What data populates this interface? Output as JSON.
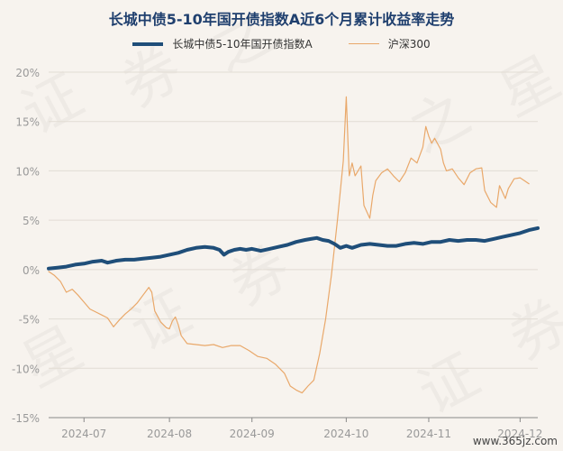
{
  "chart_data": {
    "type": "line",
    "title": "长城中债5-10年国开债指数A近6个月累计收益率走势",
    "xlabel": "",
    "ylabel": "",
    "ylim": [
      -15,
      20
    ],
    "yticks": [
      20,
      15,
      10,
      5,
      0,
      -5,
      -10,
      -15
    ],
    "ytick_labels": [
      "20%",
      "15%",
      "10%",
      "5%",
      "0%",
      "-5%",
      "-10%",
      "-15%"
    ],
    "xtick_labels": [
      "2024-07",
      "2024-08",
      "2024-09",
      "2024-10",
      "2024-11",
      "2024-12"
    ],
    "xtick_positions": [
      12,
      41,
      69,
      101,
      129,
      160
    ],
    "x_range": [
      0,
      166
    ],
    "grid": "horizontal",
    "legend_position": "top-center",
    "series": [
      {
        "name": "长城中债5-10年国开债指数A",
        "color": "#1f4e79",
        "points": [
          [
            0,
            0.1
          ],
          [
            3,
            0.2
          ],
          [
            6,
            0.3
          ],
          [
            9,
            0.5
          ],
          [
            12,
            0.6
          ],
          [
            15,
            0.8
          ],
          [
            18,
            0.9
          ],
          [
            20,
            0.7
          ],
          [
            23,
            0.9
          ],
          [
            26,
            1.0
          ],
          [
            29,
            1.0
          ],
          [
            32,
            1.1
          ],
          [
            35,
            1.2
          ],
          [
            38,
            1.3
          ],
          [
            41,
            1.5
          ],
          [
            44,
            1.7
          ],
          [
            47,
            2.0
          ],
          [
            50,
            2.2
          ],
          [
            53,
            2.3
          ],
          [
            56,
            2.2
          ],
          [
            58,
            2.0
          ],
          [
            59.5,
            1.5
          ],
          [
            61,
            1.8
          ],
          [
            63,
            2.0
          ],
          [
            65,
            2.1
          ],
          [
            67,
            2.0
          ],
          [
            69,
            2.1
          ],
          [
            72,
            1.9
          ],
          [
            75,
            2.1
          ],
          [
            78,
            2.3
          ],
          [
            81,
            2.5
          ],
          [
            84,
            2.8
          ],
          [
            87,
            3.0
          ],
          [
            89,
            3.1
          ],
          [
            91,
            3.2
          ],
          [
            93,
            3.0
          ],
          [
            95,
            2.9
          ],
          [
            97,
            2.6
          ],
          [
            99,
            2.2
          ],
          [
            101,
            2.4
          ],
          [
            103,
            2.2
          ],
          [
            106,
            2.5
          ],
          [
            109,
            2.6
          ],
          [
            112,
            2.5
          ],
          [
            115,
            2.4
          ],
          [
            118,
            2.4
          ],
          [
            121,
            2.6
          ],
          [
            124,
            2.7
          ],
          [
            127,
            2.6
          ],
          [
            130,
            2.8
          ],
          [
            133,
            2.8
          ],
          [
            136,
            3.0
          ],
          [
            139,
            2.9
          ],
          [
            142,
            3.0
          ],
          [
            145,
            3.0
          ],
          [
            148,
            2.9
          ],
          [
            151,
            3.1
          ],
          [
            154,
            3.3
          ],
          [
            157,
            3.5
          ],
          [
            160,
            3.7
          ],
          [
            163,
            4.0
          ],
          [
            166,
            4.2
          ]
        ]
      },
      {
        "name": "沪深300",
        "color": "#e9a86a",
        "points": [
          [
            0,
            -0.2
          ],
          [
            2,
            -0.6
          ],
          [
            4,
            -1.2
          ],
          [
            6,
            -2.3
          ],
          [
            8,
            -2.0
          ],
          [
            10,
            -2.6
          ],
          [
            12,
            -3.3
          ],
          [
            14,
            -4.0
          ],
          [
            16,
            -4.3
          ],
          [
            18,
            -4.6
          ],
          [
            20,
            -4.9
          ],
          [
            22,
            -5.8
          ],
          [
            24,
            -5.1
          ],
          [
            26,
            -4.5
          ],
          [
            28,
            -4.0
          ],
          [
            30,
            -3.4
          ],
          [
            32,
            -2.6
          ],
          [
            34,
            -1.8
          ],
          [
            35,
            -2.3
          ],
          [
            36,
            -4.2
          ],
          [
            38,
            -5.3
          ],
          [
            40,
            -5.9
          ],
          [
            41,
            -6.0
          ],
          [
            42,
            -5.2
          ],
          [
            43,
            -4.8
          ],
          [
            44,
            -5.6
          ],
          [
            45,
            -6.7
          ],
          [
            47,
            -7.5
          ],
          [
            50,
            -7.6
          ],
          [
            53,
            -7.7
          ],
          [
            56,
            -7.6
          ],
          [
            59,
            -7.9
          ],
          [
            62,
            -7.7
          ],
          [
            65,
            -7.7
          ],
          [
            68,
            -8.2
          ],
          [
            71,
            -8.8
          ],
          [
            74,
            -9.0
          ],
          [
            77,
            -9.6
          ],
          [
            80,
            -10.5
          ],
          [
            82,
            -11.8
          ],
          [
            84,
            -12.2
          ],
          [
            86,
            -12.5
          ],
          [
            88,
            -11.8
          ],
          [
            90,
            -11.2
          ],
          [
            92,
            -8.5
          ],
          [
            94,
            -5.0
          ],
          [
            96,
            -0.5
          ],
          [
            98,
            5.0
          ],
          [
            100,
            11.0
          ],
          [
            101,
            17.5
          ],
          [
            102,
            9.5
          ],
          [
            103,
            10.8
          ],
          [
            104,
            9.5
          ],
          [
            106,
            10.5
          ],
          [
            107,
            6.5
          ],
          [
            109,
            5.2
          ],
          [
            110,
            7.5
          ],
          [
            111,
            9.0
          ],
          [
            113,
            9.8
          ],
          [
            115,
            10.2
          ],
          [
            117,
            9.5
          ],
          [
            119,
            8.9
          ],
          [
            121,
            9.8
          ],
          [
            123,
            11.3
          ],
          [
            125,
            10.8
          ],
          [
            127,
            12.4
          ],
          [
            128,
            14.5
          ],
          [
            129,
            13.5
          ],
          [
            130,
            12.8
          ],
          [
            131,
            13.3
          ],
          [
            133,
            12.2
          ],
          [
            134,
            10.8
          ],
          [
            135,
            10.0
          ],
          [
            137,
            10.2
          ],
          [
            139,
            9.3
          ],
          [
            141,
            8.6
          ],
          [
            143,
            9.8
          ],
          [
            145,
            10.2
          ],
          [
            147,
            10.3
          ],
          [
            148,
            8.0
          ],
          [
            150,
            6.8
          ],
          [
            152,
            6.3
          ],
          [
            153,
            8.5
          ],
          [
            155,
            7.2
          ],
          [
            156,
            8.2
          ],
          [
            158,
            9.2
          ],
          [
            160,
            9.3
          ],
          [
            162,
            8.9
          ],
          [
            163,
            8.7
          ]
        ]
      }
    ]
  },
  "watermark": {
    "text": "www.365jz.com",
    "chars": [
      "证",
      "券",
      "之",
      "星"
    ]
  }
}
